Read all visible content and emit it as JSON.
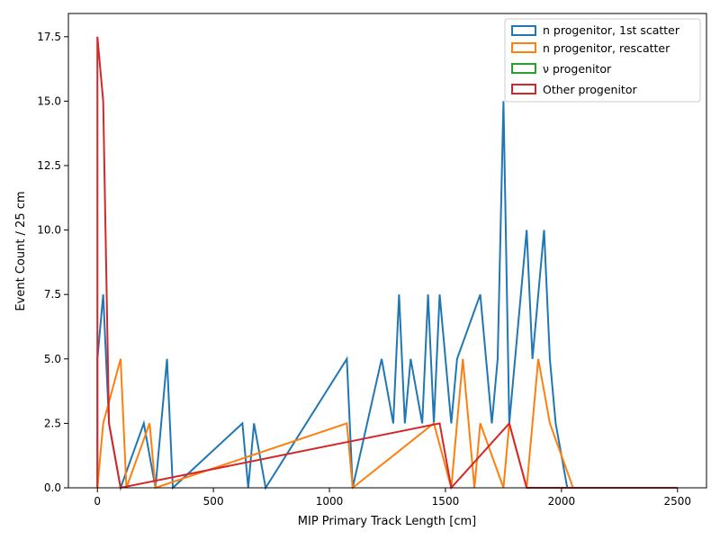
{
  "chart_data": {
    "type": "histogram-step",
    "xlabel": "MIP Primary Track Length [cm]",
    "ylabel": "Event Count / 25 cm",
    "xlim": [
      -125,
      2625
    ],
    "ylim": [
      0,
      18.4
    ],
    "bin_width": 25,
    "xticks": [
      0,
      500,
      1000,
      1500,
      2000,
      2500
    ],
    "xtick_labels": [
      "0",
      "500",
      "1000",
      "1500",
      "2000",
      "2500"
    ],
    "yticks": [
      0,
      2.5,
      5,
      7.5,
      10,
      12.5,
      15,
      17.5
    ],
    "ytick_labels": [
      "0.0",
      "2.5",
      "5.0",
      "7.5",
      "10.0",
      "12.5",
      "15.0",
      "17.5"
    ],
    "legend_position": "top-right",
    "series": [
      {
        "name": "n progenitor, 1st scatter",
        "color": "#1f77b4",
        "bins": [
          [
            0,
            5
          ],
          [
            25,
            7.5
          ],
          [
            50,
            2.5
          ],
          [
            75,
            2.5
          ],
          [
            200,
            2.5
          ],
          [
            225,
            2.5
          ],
          [
            275,
            2.5
          ],
          [
            300,
            5
          ],
          [
            625,
            2.5
          ],
          [
            675,
            2.5
          ],
          [
            700,
            2.5
          ],
          [
            1075,
            5
          ],
          [
            1225,
            5
          ],
          [
            1250,
            5
          ],
          [
            1275,
            2.5
          ],
          [
            1300,
            7.5
          ],
          [
            1325,
            2.5
          ],
          [
            1350,
            5
          ],
          [
            1375,
            5
          ],
          [
            1400,
            2.5
          ],
          [
            1425,
            7.5
          ],
          [
            1450,
            2.5
          ],
          [
            1475,
            7.5
          ],
          [
            1500,
            5
          ],
          [
            1525,
            2.5
          ],
          [
            1550,
            5
          ],
          [
            1575,
            5
          ],
          [
            1600,
            5
          ],
          [
            1625,
            5
          ],
          [
            1650,
            7.5
          ],
          [
            1675,
            5
          ],
          [
            1700,
            2.5
          ],
          [
            1725,
            5
          ],
          [
            1750,
            15
          ],
          [
            1775,
            2.5
          ],
          [
            1800,
            5
          ],
          [
            1825,
            5
          ],
          [
            1850,
            10
          ],
          [
            1875,
            5
          ],
          [
            1900,
            7.5
          ],
          [
            1925,
            10
          ],
          [
            1950,
            5
          ],
          [
            1975,
            2.5
          ],
          [
            2000,
            2.5
          ]
        ]
      },
      {
        "name": "n progenitor, rescatter",
        "color": "#ff7f0e",
        "bins": [
          [
            25,
            2.5
          ],
          [
            50,
            2.5
          ],
          [
            75,
            2.5
          ],
          [
            100,
            5
          ],
          [
            225,
            2.5
          ],
          [
            1075,
            2.5
          ],
          [
            1450,
            2.5
          ],
          [
            1475,
            2.5
          ],
          [
            1500,
            2.5
          ],
          [
            1575,
            5
          ],
          [
            1600,
            2.5
          ],
          [
            1625,
            0
          ],
          [
            1650,
            2.5
          ],
          [
            1675,
            2.5
          ],
          [
            1700,
            2.5
          ],
          [
            1725,
            2.5
          ],
          [
            1775,
            2.5
          ],
          [
            1800,
            2.5
          ],
          [
            1825,
            2.5
          ],
          [
            1900,
            5
          ],
          [
            1925,
            5
          ],
          [
            1950,
            2.5
          ],
          [
            1975,
            2.5
          ],
          [
            2000,
            2.5
          ],
          [
            2025,
            2.5
          ]
        ]
      },
      {
        "name": "ν progenitor",
        "color": "#2ca02c",
        "bins": []
      },
      {
        "name": "Other progenitor",
        "color": "#d62728",
        "bins": [
          [
            0,
            17.5
          ],
          [
            25,
            15
          ],
          [
            50,
            2.5
          ],
          [
            75,
            2.5
          ],
          [
            1475,
            2.5
          ],
          [
            1500,
            2.5
          ],
          [
            1775,
            2.5
          ],
          [
            1800,
            2.5
          ],
          [
            1825,
            2.5
          ]
        ]
      }
    ]
  }
}
